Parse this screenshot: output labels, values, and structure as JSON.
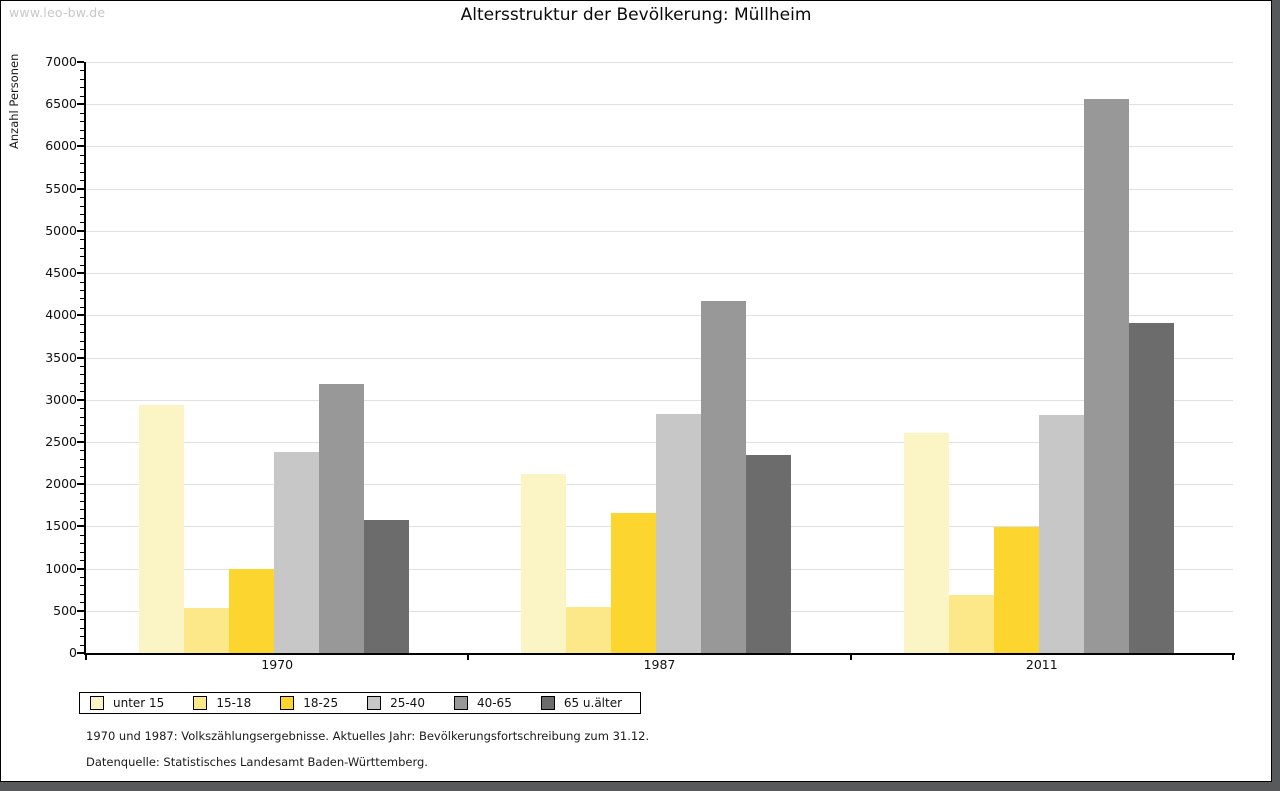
{
  "window": {
    "watermark": "www.leo-bw.de"
  },
  "title": "Altersstruktur der Bevölkerung: Müllheim",
  "footnotes": {
    "line1": "1970 und 1987: Volkszählungsergebnisse. Aktuelles Jahr: Bevölkerungsfortschreibung zum 31.12.",
    "line2": "Datenquelle: Statistisches Landesamt Baden-Württemberg."
  },
  "chart_data": {
    "type": "bar",
    "title": "Altersstruktur der Bevölkerung: Müllheim",
    "xlabel": "",
    "ylabel": "Anzahl Personen",
    "ylim": [
      0,
      7000
    ],
    "ytick_step": 500,
    "yminor_step": 100,
    "grid": "horizontal-light",
    "legend_position": "bottom-left-boxed",
    "categories": [
      "1970",
      "1987",
      "2011"
    ],
    "series": [
      {
        "name": "unter 15",
        "color": "#FBF4C5",
        "values": [
          2940,
          2120,
          2610
        ]
      },
      {
        "name": "15-18",
        "color": "#FCE888",
        "values": [
          535,
          540,
          685
        ]
      },
      {
        "name": "18-25",
        "color": "#FCD62F",
        "values": [
          1000,
          1660,
          1490
        ]
      },
      {
        "name": "25-40",
        "color": "#C7C7C7",
        "values": [
          2380,
          2830,
          2820
        ]
      },
      {
        "name": "40-65",
        "color": "#989898",
        "values": [
          3190,
          4170,
          6560
        ]
      },
      {
        "name": "65 u.älter",
        "color": "#6C6C6C",
        "values": [
          1570,
          2345,
          3910
        ]
      }
    ],
    "colors": {
      "gridline": "#E1E1E1",
      "axis": "#000000",
      "frame": "#58595B",
      "watermark": "#C8C8C8"
    }
  }
}
